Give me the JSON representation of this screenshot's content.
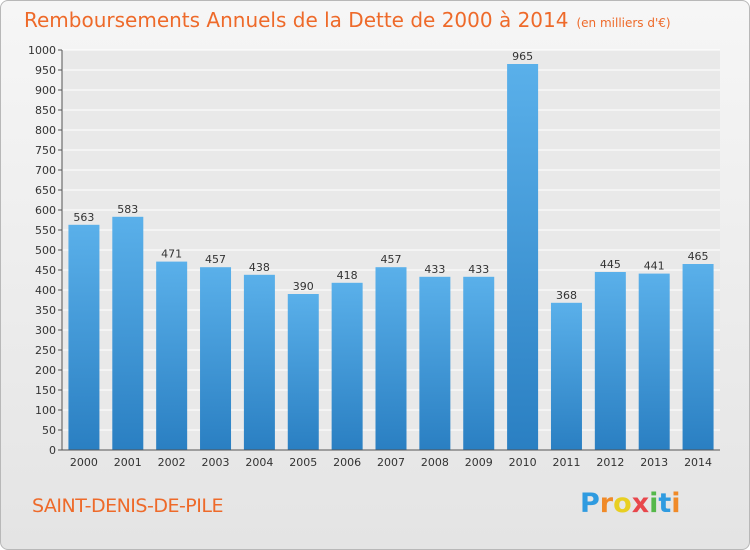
{
  "header": {
    "title": "Remboursements Annuels de la Dette de 2000 à 2014",
    "subtitle": "(en milliers d'€)"
  },
  "footer": {
    "city": "SAINT-DENIS-DE-PILE",
    "logo": [
      "P",
      "r",
      "o",
      "x",
      "i",
      "t",
      "i"
    ]
  },
  "colors": {
    "accent": "#ee6a2a",
    "bar_top": "#5ab0ea",
    "bar_bottom": "#2a7fc2"
  },
  "chart_data": {
    "type": "bar",
    "title": "Remboursements Annuels de la Dette de 2000 à 2014",
    "subtitle": "(en milliers d'€)",
    "categories": [
      "2000",
      "2001",
      "2002",
      "2003",
      "2004",
      "2005",
      "2006",
      "2007",
      "2008",
      "2009",
      "2010",
      "2011",
      "2012",
      "2013",
      "2014"
    ],
    "values": [
      563,
      583,
      471,
      457,
      438,
      390,
      418,
      457,
      433,
      433,
      965,
      368,
      445,
      441,
      465
    ],
    "xlabel": "",
    "ylabel": "",
    "ylim": [
      0,
      1000
    ],
    "yticks": [
      0,
      50,
      100,
      150,
      200,
      250,
      300,
      350,
      400,
      450,
      500,
      550,
      600,
      650,
      700,
      750,
      800,
      850,
      900,
      950,
      1000
    ],
    "grid": true,
    "data_labels": true
  }
}
